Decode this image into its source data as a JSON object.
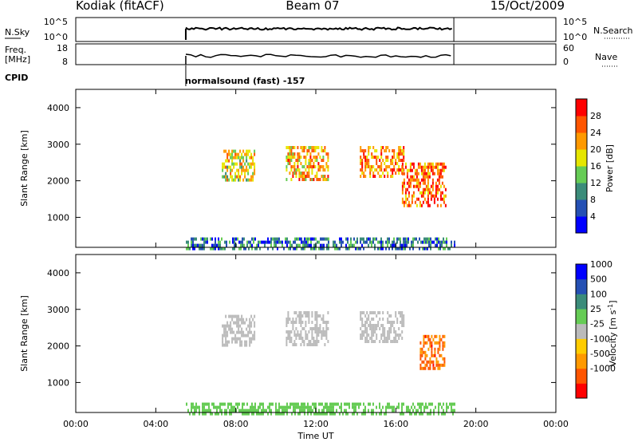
{
  "header": {
    "station": "Kodiak (fitACF)",
    "beam": "Beam 07",
    "date": "15/Oct/2009"
  },
  "noise_panel": {
    "left_label": "N.Sky",
    "right_label": "N.Search",
    "left_ticks": [
      "10^5",
      "10^0"
    ],
    "right_ticks": [
      "10^5",
      "10^0"
    ]
  },
  "freq_panel": {
    "left_label_line1": "Freq.",
    "left_label_line2": "[MHz]",
    "right_label": "Nave",
    "left_ticks": [
      "18",
      "8"
    ],
    "right_ticks": [
      "60",
      "0"
    ]
  },
  "cpid": {
    "label": "CPID",
    "text": "normalsound (fast) -157",
    "start_hour": 5.5
  },
  "colors": {
    "power_scale": [
      "#0000ff",
      "#2550b4",
      "#3b8c7a",
      "#66cc55",
      "#e6e600",
      "#ff9900",
      "#ff5500",
      "#ff0000"
    ],
    "velocity_scale": [
      "#0000ff",
      "#2550b4",
      "#3b8c7a",
      "#66cc55",
      "#bbbbbb",
      "#ffcc00",
      "#ff9900",
      "#ff5500",
      "#ff0000"
    ]
  },
  "chart_data": [
    {
      "type": "heatmap",
      "name": "power",
      "xlabel": "",
      "ylabel": "Slant Range [km]",
      "xlim": [
        0,
        24
      ],
      "ylim": [
        180,
        4500
      ],
      "yticks": [
        "1000",
        "2000",
        "3000",
        "4000"
      ],
      "colorbar_label": "Power [dB]",
      "colorbar_ticks": [
        "4",
        "8",
        "12",
        "16",
        "20",
        "24",
        "28"
      ],
      "colorbar_range": [
        0,
        30
      ],
      "data_hours": [
        5.5,
        18.9
      ],
      "echo_regions": [
        {
          "t0": 7.3,
          "t1": 8.9,
          "r0": 2000,
          "r1": 2850,
          "v": 17
        },
        {
          "t0": 10.5,
          "t1": 12.6,
          "r0": 2050,
          "r1": 2950,
          "v": 20
        },
        {
          "t0": 14.2,
          "t1": 16.4,
          "r0": 2100,
          "r1": 2950,
          "v": 22
        },
        {
          "t0": 16.3,
          "t1": 18.5,
          "r0": 1300,
          "r1": 2500,
          "v": 24
        },
        {
          "t0": 5.5,
          "t1": 18.9,
          "r0": 180,
          "r1": 450,
          "v": 8
        }
      ]
    },
    {
      "type": "heatmap",
      "name": "velocity",
      "xlabel": "Time UT",
      "ylabel": "Slant Range [km]",
      "xlim": [
        0,
        24
      ],
      "ylim": [
        180,
        4500
      ],
      "xticks": [
        "00:00",
        "04:00",
        "08:00",
        "12:00",
        "16:00",
        "20:00",
        "00:00"
      ],
      "yticks": [
        "1000",
        "2000",
        "3000",
        "4000"
      ],
      "colorbar_label": "Velocity [m s",
      "colorbar_label_sup": "-1",
      "colorbar_label_end": "]",
      "colorbar_ticks": [
        "1000",
        "500",
        "100",
        "25",
        "-25",
        "-100",
        "-500",
        "-1000"
      ],
      "data_hours": [
        5.5,
        18.9
      ],
      "echo_regions": [
        {
          "t0": 7.3,
          "t1": 8.9,
          "r0": 2000,
          "r1": 2850,
          "v": 0
        },
        {
          "t0": 10.5,
          "t1": 12.6,
          "r0": 2050,
          "r1": 2950,
          "v": 0
        },
        {
          "t0": 14.2,
          "t1": 16.4,
          "r0": 2100,
          "r1": 2950,
          "v": 0
        },
        {
          "t0": 17.2,
          "t1": 18.4,
          "r0": 1400,
          "r1": 2300,
          "v": -600
        },
        {
          "t0": 5.5,
          "t1": 18.9,
          "r0": 180,
          "r1": 450,
          "v": 60
        }
      ]
    }
  ]
}
